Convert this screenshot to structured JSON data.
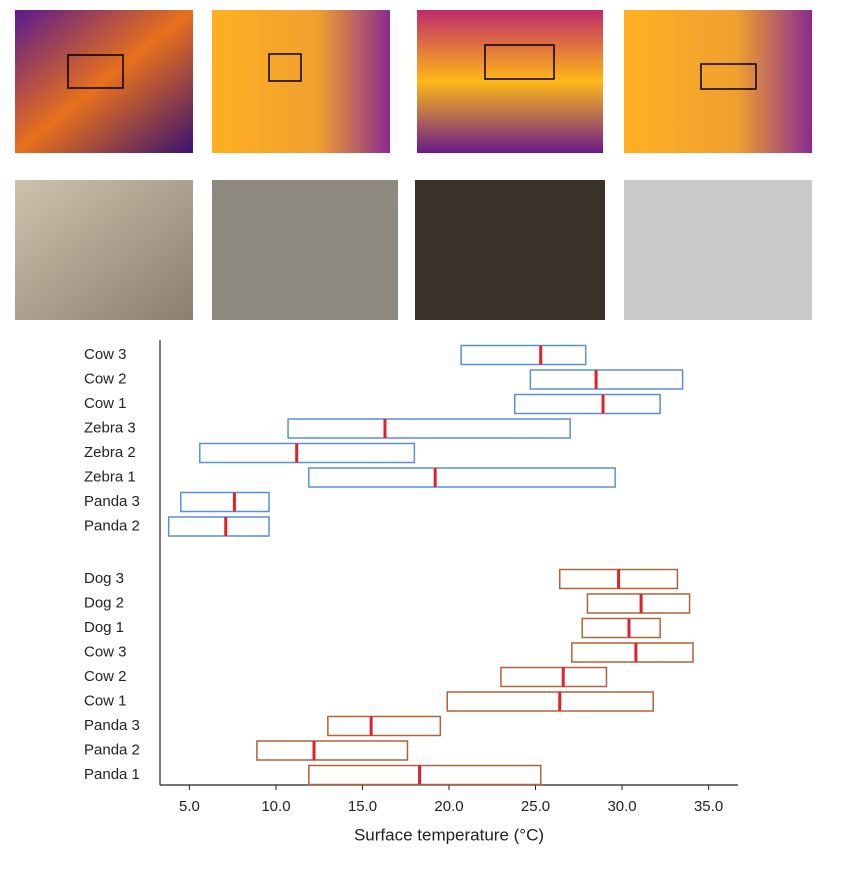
{
  "chart_data": {
    "type": "range",
    "x_label": "Surface temperature (°C)",
    "xlim": [
      3.3,
      36.7
    ],
    "xticks": [
      {
        "value": 5,
        "label": "5.0"
      },
      {
        "value": 10,
        "label": "10.0"
      },
      {
        "value": 15,
        "label": "15.0"
      },
      {
        "value": 20,
        "label": "20.0"
      },
      {
        "value": 25,
        "label": "25.0"
      },
      {
        "value": 30,
        "label": "30.0"
      },
      {
        "value": 35,
        "label": "35.0"
      }
    ],
    "median_color": "#e0202a",
    "series": [
      {
        "color": "#5b8fd4",
        "categories": [
          "Cow 3",
          "Cow 2",
          "Cow 1",
          "Zebra 3",
          "Zebra 2",
          "Zebra 1",
          "Panda 3",
          "Panda 2"
        ],
        "low": [
          20.7,
          24.7,
          23.8,
          10.7,
          5.6,
          11.9,
          4.5,
          3.8
        ],
        "high": [
          27.9,
          33.5,
          32.2,
          27.0,
          18.0,
          29.6,
          9.6,
          9.6
        ],
        "median": [
          25.3,
          28.5,
          28.9,
          16.3,
          11.2,
          19.2,
          7.6,
          7.1
        ]
      },
      {
        "color": "#b0623a",
        "categories": [
          "Dog 3",
          "Dog 2",
          "Dog 1",
          "Cow 3",
          "Cow 2",
          "Cow 1",
          "Panda 3",
          "Panda 2",
          "Panda 1"
        ],
        "low": [
          26.4,
          28.0,
          27.7,
          27.1,
          23.0,
          19.9,
          13.0,
          8.9,
          11.9
        ],
        "high": [
          33.2,
          33.9,
          32.2,
          34.1,
          29.1,
          31.8,
          19.5,
          17.6,
          25.3
        ],
        "median": [
          29.8,
          31.1,
          30.4,
          30.8,
          26.6,
          26.4,
          15.5,
          12.2,
          18.3
        ]
      }
    ]
  }
}
